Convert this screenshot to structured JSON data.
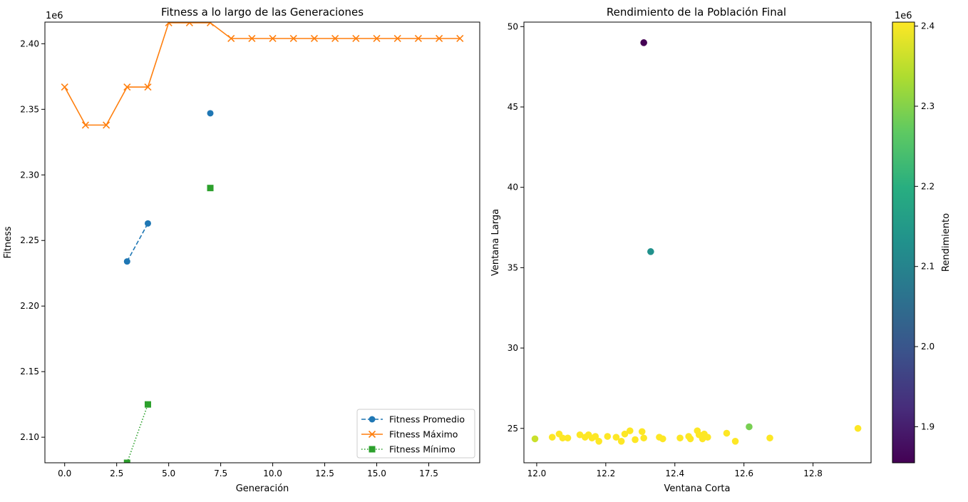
{
  "chart_data": [
    {
      "type": "line",
      "title": "Fitness a lo largo de las Generaciones",
      "xlabel": "Generación",
      "ylabel": "Fitness",
      "offset_label": "1e6",
      "xlim": [
        -0.95,
        19.95
      ],
      "ylim": [
        2.0805,
        2.4165
      ],
      "xticks": [
        0.0,
        2.5,
        5.0,
        7.5,
        10.0,
        12.5,
        15.0,
        17.5
      ],
      "xtick_labels": [
        "0.0",
        "2.5",
        "5.0",
        "7.5",
        "10.0",
        "12.5",
        "15.0",
        "17.5"
      ],
      "yticks": [
        2.1,
        2.15,
        2.2,
        2.25,
        2.3,
        2.35,
        2.4
      ],
      "ytick_labels": [
        "2.10",
        "2.15",
        "2.20",
        "2.25",
        "2.30",
        "2.35",
        "2.40"
      ],
      "legend_position": "lower-right",
      "series": [
        {
          "name": "Fitness Promedio",
          "color": "#1f77b4",
          "linestyle": "dashed",
          "marker": "circle",
          "x": [
            3,
            4,
            7
          ],
          "values": [
            2.234,
            2.263,
            2.347
          ],
          "segments": [
            [
              3,
              4
            ]
          ]
        },
        {
          "name": "Fitness Máximo",
          "color": "#ff7f0e",
          "linestyle": "solid",
          "marker": "x",
          "x": [
            0,
            1,
            2,
            3,
            4,
            5,
            6,
            7,
            8,
            9,
            10,
            11,
            12,
            13,
            14,
            15,
            16,
            17,
            18,
            19
          ],
          "values": [
            2.367,
            2.338,
            2.338,
            2.367,
            2.367,
            2.416,
            2.416,
            2.416,
            2.404,
            2.404,
            2.404,
            2.404,
            2.404,
            2.404,
            2.404,
            2.404,
            2.404,
            2.404,
            2.404,
            2.404
          ],
          "segments": [
            [
              0,
              19
            ]
          ]
        },
        {
          "name": "Fitness Mínimo",
          "color": "#2ca02c",
          "linestyle": "dotted",
          "marker": "square",
          "x": [
            3,
            4,
            7
          ],
          "values": [
            2.0805,
            2.125,
            2.29
          ],
          "segments": [
            [
              3,
              4
            ]
          ]
        }
      ]
    },
    {
      "type": "scatter",
      "title": "Rendimiento de la Población Final",
      "xlabel": "Ventana Corta",
      "ylabel": "Ventana Larga",
      "xlim": [
        11.963,
        12.968
      ],
      "ylim": [
        22.86,
        50.28
      ],
      "xticks": [
        12.0,
        12.2,
        12.4,
        12.6,
        12.8
      ],
      "xtick_labels": [
        "12.0",
        "12.2",
        "12.4",
        "12.6",
        "12.8"
      ],
      "yticks": [
        25,
        30,
        35,
        40,
        45,
        50
      ],
      "ytick_labels": [
        "25",
        "30",
        "35",
        "40",
        "45",
        "50"
      ],
      "colorbar": {
        "label": "Rendimiento",
        "offset_label": "1e6",
        "colormap": "viridis",
        "range": [
          1.855,
          2.405
        ],
        "ticks": [
          1.9,
          2.0,
          2.1,
          2.2,
          2.3,
          2.4
        ],
        "tick_labels": [
          "1.9",
          "2.0",
          "2.1",
          "2.2",
          "2.3",
          "2.4"
        ]
      },
      "points": [
        {
          "x": 12.31,
          "y": 49.0,
          "c": 1.855
        },
        {
          "x": 12.33,
          "y": 36.0,
          "c": 2.13
        },
        {
          "x": 12.615,
          "y": 25.1,
          "c": 2.29
        },
        {
          "x": 11.995,
          "y": 24.35,
          "c": 2.36
        },
        {
          "x": 12.045,
          "y": 24.45,
          "c": 2.405
        },
        {
          "x": 12.065,
          "y": 24.65,
          "c": 2.405
        },
        {
          "x": 12.075,
          "y": 24.4,
          "c": 2.405
        },
        {
          "x": 12.09,
          "y": 24.4,
          "c": 2.405
        },
        {
          "x": 12.125,
          "y": 24.6,
          "c": 2.405
        },
        {
          "x": 12.14,
          "y": 24.45,
          "c": 2.405
        },
        {
          "x": 12.15,
          "y": 24.6,
          "c": 2.405
        },
        {
          "x": 12.16,
          "y": 24.4,
          "c": 2.405
        },
        {
          "x": 12.17,
          "y": 24.5,
          "c": 2.405
        },
        {
          "x": 12.18,
          "y": 24.2,
          "c": 2.405
        },
        {
          "x": 12.205,
          "y": 24.5,
          "c": 2.405
        },
        {
          "x": 12.23,
          "y": 24.45,
          "c": 2.405
        },
        {
          "x": 12.245,
          "y": 24.2,
          "c": 2.405
        },
        {
          "x": 12.255,
          "y": 24.65,
          "c": 2.405
        },
        {
          "x": 12.27,
          "y": 24.85,
          "c": 2.405
        },
        {
          "x": 12.285,
          "y": 24.3,
          "c": 2.405
        },
        {
          "x": 12.305,
          "y": 24.8,
          "c": 2.405
        },
        {
          "x": 12.31,
          "y": 24.4,
          "c": 2.405
        },
        {
          "x": 12.355,
          "y": 24.45,
          "c": 2.405
        },
        {
          "x": 12.365,
          "y": 24.35,
          "c": 2.405
        },
        {
          "x": 12.415,
          "y": 24.4,
          "c": 2.405
        },
        {
          "x": 12.44,
          "y": 24.5,
          "c": 2.405
        },
        {
          "x": 12.445,
          "y": 24.35,
          "c": 2.405
        },
        {
          "x": 12.465,
          "y": 24.85,
          "c": 2.405
        },
        {
          "x": 12.47,
          "y": 24.6,
          "c": 2.405
        },
        {
          "x": 12.48,
          "y": 24.35,
          "c": 2.405
        },
        {
          "x": 12.485,
          "y": 24.65,
          "c": 2.405
        },
        {
          "x": 12.495,
          "y": 24.45,
          "c": 2.405
        },
        {
          "x": 12.55,
          "y": 24.7,
          "c": 2.405
        },
        {
          "x": 12.575,
          "y": 24.2,
          "c": 2.405
        },
        {
          "x": 12.675,
          "y": 24.4,
          "c": 2.405
        },
        {
          "x": 12.93,
          "y": 25.0,
          "c": 2.405
        }
      ]
    }
  ]
}
